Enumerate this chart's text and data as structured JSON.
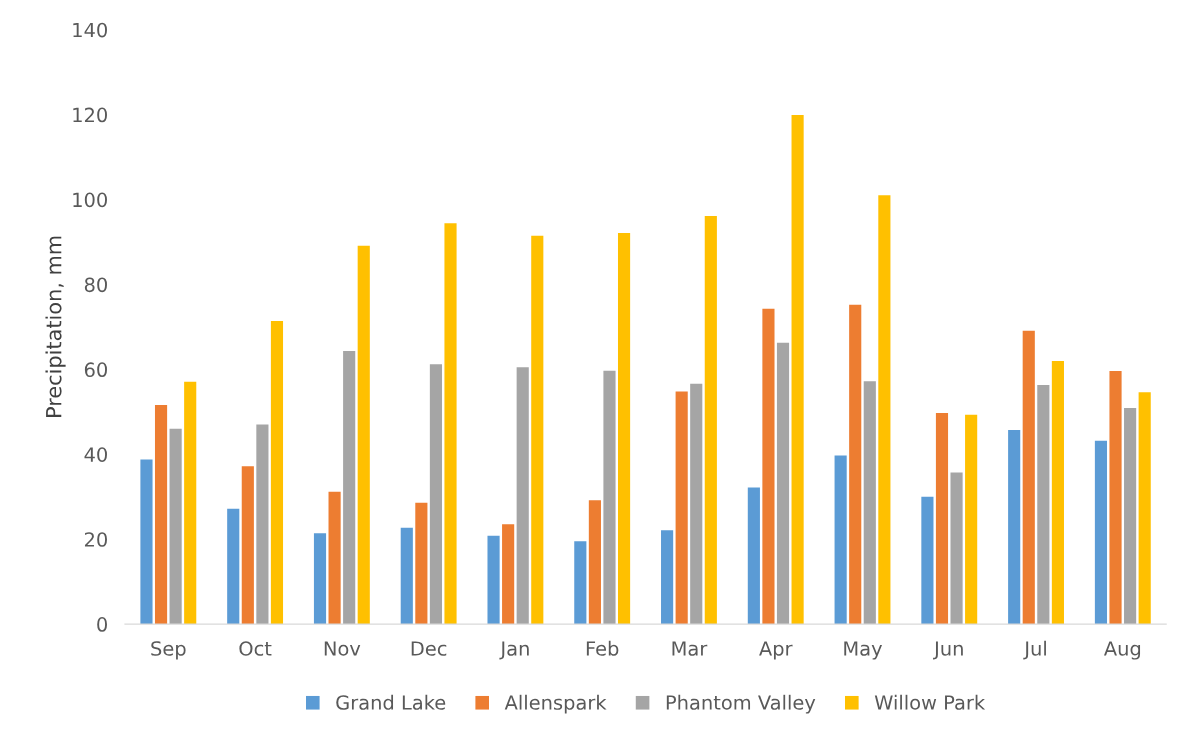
{
  "chart_data": {
    "type": "bar",
    "ylabel": "Precipitation, mm",
    "categories": [
      "Sep",
      "Oct",
      "Nov",
      "Dec",
      "Jan",
      "Feb",
      "Mar",
      "Apr",
      "May",
      "Jun",
      "Jul",
      "Aug"
    ],
    "series": [
      {
        "name": "Grand Lake",
        "color": "#5b9bd5",
        "values": [
          38.8,
          27.2,
          21.4,
          22.7,
          20.8,
          19.5,
          22.1,
          32.2,
          39.7,
          30.0,
          45.7,
          43.2
        ]
      },
      {
        "name": "Allenspark",
        "color": "#ed7d31",
        "values": [
          51.6,
          37.2,
          31.2,
          28.6,
          23.5,
          29.2,
          54.8,
          74.3,
          75.2,
          49.7,
          69.1,
          59.6
        ]
      },
      {
        "name": "Phantom Valley",
        "color": "#a5a5a5",
        "values": [
          46.0,
          47.0,
          64.3,
          61.2,
          60.5,
          59.7,
          56.6,
          66.3,
          57.2,
          35.7,
          56.3,
          50.9
        ]
      },
      {
        "name": "Willow Park",
        "color": "#ffc000",
        "values": [
          57.1,
          71.4,
          89.1,
          94.4,
          91.5,
          92.1,
          96.1,
          119.9,
          101.0,
          49.3,
          62.0,
          54.6
        ]
      }
    ],
    "ylim": [
      0,
      140
    ],
    "yticks": [
      0,
      20,
      40,
      60,
      80,
      100,
      120,
      140
    ],
    "grid": false,
    "legend": "bottom"
  }
}
